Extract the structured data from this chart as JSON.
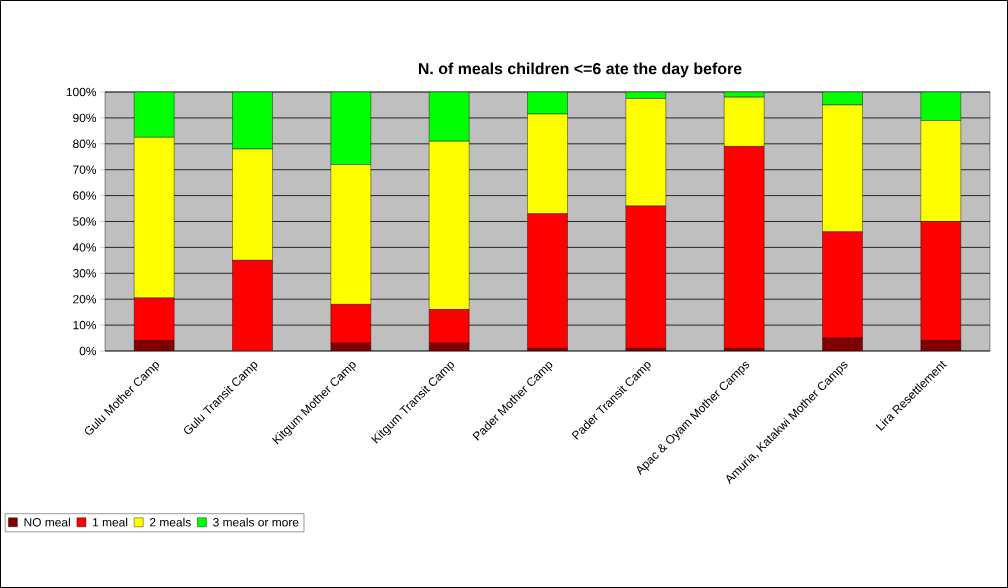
{
  "chart_data": {
    "type": "bar",
    "stacked": true,
    "title": "N. of meals children <=6 ate the day before",
    "categories": [
      "Gulu Mother Camp",
      "Gulu Transit Camp",
      "Kitgum Mother Camp",
      "Kitgum Transit Camp",
      "Pader Mother Camp",
      "Pader Transit Camp",
      "Apac & Oyam Mother Camps",
      "Amuria, Katakwi Mother Camps",
      "Lira Resettlement"
    ],
    "series": [
      {
        "name": "NO meal",
        "color": "#800000",
        "values": [
          4,
          0,
          3,
          3,
          1,
          1,
          1,
          5,
          4
        ]
      },
      {
        "name": "1 meal",
        "color": "#ff0000",
        "values": [
          16.5,
          35,
          15,
          13,
          52,
          55,
          78,
          41,
          46
        ]
      },
      {
        "name": "2 meals",
        "color": "#ffff00",
        "values": [
          62,
          43,
          54,
          65,
          38.5,
          41.5,
          19,
          49,
          39
        ]
      },
      {
        "name": "3 meals or more",
        "color": "#00ff00",
        "values": [
          17.5,
          22,
          28,
          19,
          8.5,
          2.5,
          2,
          5,
          11
        ]
      }
    ],
    "ylim": [
      0,
      100
    ],
    "yticks": [
      {
        "value": 0,
        "label": "0%"
      },
      {
        "value": 10,
        "label": "10%"
      },
      {
        "value": 20,
        "label": "20%"
      },
      {
        "value": 30,
        "label": "30%"
      },
      {
        "value": 40,
        "label": "40%"
      },
      {
        "value": 50,
        "label": "50%"
      },
      {
        "value": 60,
        "label": "60%"
      },
      {
        "value": 70,
        "label": "70%"
      },
      {
        "value": 80,
        "label": "80%"
      },
      {
        "value": 90,
        "label": "90%"
      },
      {
        "value": 100,
        "label": "100%"
      }
    ],
    "grid": "y",
    "legend": "bottom left"
  }
}
